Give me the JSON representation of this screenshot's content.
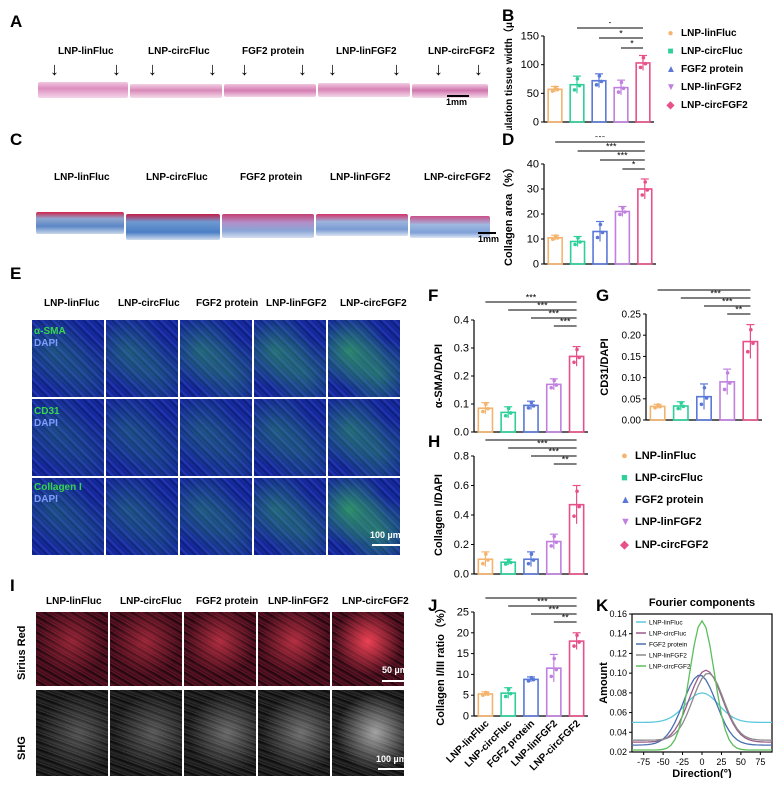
{
  "panels": {
    "A": "A",
    "B": "B",
    "C": "C",
    "D": "D",
    "E": "E",
    "F": "F",
    "G": "G",
    "H": "H",
    "I": "I",
    "J": "J",
    "K": "K"
  },
  "groups": [
    "LNP-linFluc",
    "LNP-circFluc",
    "FGF2 protein",
    "LNP-linFGF2",
    "LNP-circFGF2"
  ],
  "colors": {
    "g1": "#f5b46e",
    "g2": "#2ecf9a",
    "g3": "#5a78d8",
    "g4": "#c080e0",
    "g5": "#e8508a"
  },
  "scalebars": {
    "A": "1mm",
    "C": "1mm",
    "E": "100 µm",
    "I_top": "50 µm",
    "I_bottom": "100 µm"
  },
  "stain_labels": {
    "e_row1_a": "α-SMA",
    "e_row1_b": "DAPI",
    "e_row2_a": "CD31",
    "e_row2_b": "DAPI",
    "e_row3_a": "Collagen I",
    "e_row3_b": "DAPI",
    "i_row1": "Sirius Red",
    "i_row2": "SHG"
  },
  "chart_data": [
    {
      "id": "B",
      "type": "bar",
      "title": "",
      "ylabel": "Granulation tissue width（μm）",
      "ylim": [
        0,
        150
      ],
      "yticks": [
        0,
        50,
        100,
        150
      ],
      "categories": [
        "LNP-linFluc",
        "LNP-circFluc",
        "FGF2 protein",
        "LNP-linFGF2",
        "LNP-circFGF2"
      ],
      "values": [
        57,
        65,
        72,
        60,
        103
      ],
      "errors": [
        5,
        15,
        12,
        13,
        13
      ],
      "significance": [
        "**",
        "*",
        "*",
        "*"
      ]
    },
    {
      "id": "D",
      "type": "bar",
      "ylabel": "Collagen area（%）",
      "ylim": [
        0,
        40
      ],
      "yticks": [
        0,
        10,
        20,
        30,
        40
      ],
      "categories": [
        "LNP-linFluc",
        "LNP-circFluc",
        "FGF2 protein",
        "LNP-linFGF2",
        "LNP-circFGF2"
      ],
      "values": [
        10.5,
        9,
        13,
        21,
        30
      ],
      "errors": [
        1,
        2,
        4,
        2,
        4
      ],
      "significance": [
        "***",
        "***",
        "***",
        "*"
      ]
    },
    {
      "id": "F",
      "type": "bar",
      "ylabel": "α-SMA/DAPI",
      "ylim": [
        0,
        0.4
      ],
      "yticks": [
        "0.0",
        "0.1",
        "0.2",
        "0.3",
        "0.4"
      ],
      "categories": [
        "LNP-linFluc",
        "LNP-circFluc",
        "FGF2 protein",
        "LNP-linFGF2",
        "LNP-circFGF2"
      ],
      "values": [
        0.085,
        0.07,
        0.095,
        0.17,
        0.27
      ],
      "errors": [
        0.02,
        0.02,
        0.015,
        0.02,
        0.035
      ],
      "significance": [
        "***",
        "***",
        "***",
        "***"
      ]
    },
    {
      "id": "G",
      "type": "bar",
      "ylabel": "CD31/DAPI",
      "ylim": [
        0,
        0.25
      ],
      "yticks": [
        "0.00",
        "0.05",
        "0.10",
        "0.15",
        "0.20",
        "0.25"
      ],
      "categories": [
        "LNP-linFluc",
        "LNP-circFluc",
        "FGF2 protein",
        "LNP-linFGF2",
        "LNP-circFGF2"
      ],
      "values": [
        0.032,
        0.033,
        0.055,
        0.09,
        0.185
      ],
      "errors": [
        0.005,
        0.01,
        0.03,
        0.03,
        0.04
      ],
      "significance": [
        "***",
        "***",
        "***",
        "**"
      ]
    },
    {
      "id": "H",
      "type": "bar",
      "ylabel": "Collagen I/DAPI",
      "ylim": [
        0,
        0.8
      ],
      "yticks": [
        "0.0",
        "0.2",
        "0.4",
        "0.6",
        "0.8"
      ],
      "categories": [
        "LNP-linFluc",
        "LNP-circFluc",
        "FGF2 protein",
        "LNP-linFGF2",
        "LNP-circFGF2"
      ],
      "values": [
        0.1,
        0.08,
        0.1,
        0.22,
        0.47
      ],
      "errors": [
        0.05,
        0.02,
        0.05,
        0.05,
        0.13
      ],
      "significance": [
        "***",
        "***",
        "***",
        "**"
      ]
    },
    {
      "id": "J",
      "type": "bar",
      "ylabel": "Collagen I/III ratio（%）",
      "ylim": [
        0,
        25
      ],
      "yticks": [
        0,
        5,
        10,
        15,
        20,
        25
      ],
      "categories": [
        "LNP-linFluc",
        "LNP-circFluc",
        "FGF2 protein",
        "LNP-linFGF2",
        "LNP-circFGF2"
      ],
      "values": [
        5.3,
        5.5,
        8.8,
        11.5,
        18
      ],
      "errors": [
        0.5,
        1.3,
        0.6,
        3.3,
        2
      ],
      "significance": [
        "***",
        "***",
        "***",
        "**"
      ]
    },
    {
      "id": "K",
      "type": "line",
      "title": "Fourier components",
      "xlabel": "Direction(°)",
      "ylabel": "Amount",
      "xlim": [
        -90,
        90
      ],
      "ylim": [
        0.02,
        0.16
      ],
      "xticks": [
        -75,
        -50,
        -25,
        0,
        25,
        50,
        75
      ],
      "yticks": [
        "0.02",
        "0.04",
        "0.06",
        "0.08",
        "0.10",
        "0.12",
        "0.14",
        "0.16"
      ],
      "series": [
        {
          "name": "LNP-linFluc",
          "peak": 0.08,
          "center": 0,
          "width": 30,
          "base": 0.05
        },
        {
          "name": "LNP-circFluc",
          "peak": 0.103,
          "center": 5,
          "width": 30,
          "base": 0.03
        },
        {
          "name": "FGF2 protein",
          "peak": 0.098,
          "center": -3,
          "width": 30,
          "base": 0.027
        },
        {
          "name": "LNP-linFGF2",
          "peak": 0.1,
          "center": 8,
          "width": 28,
          "base": 0.032
        },
        {
          "name": "LNP-circFGF2",
          "peak": 0.153,
          "center": 0,
          "width": 22,
          "base": 0.022
        }
      ]
    }
  ]
}
